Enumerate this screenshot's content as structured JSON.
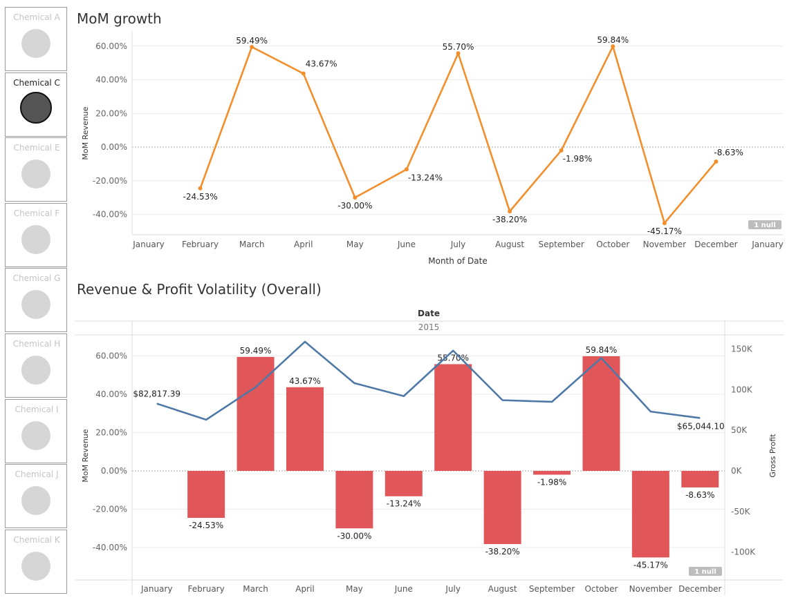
{
  "sidebar": {
    "items": [
      {
        "label": "Chemical A",
        "selected": false
      },
      {
        "label": "Chemical C",
        "selected": true
      },
      {
        "label": "Chemical E",
        "selected": false
      },
      {
        "label": "Chemical F",
        "selected": false
      },
      {
        "label": "Chemical G",
        "selected": false
      },
      {
        "label": "Chemical H",
        "selected": false
      },
      {
        "label": "Chemical I",
        "selected": false
      },
      {
        "label": "Chemical J",
        "selected": false
      },
      {
        "label": "Chemical K",
        "selected": false
      }
    ]
  },
  "chart_data": [
    {
      "type": "line",
      "title": "MoM growth",
      "xlabel": "Month of Date",
      "ylabel": "MoM Revenue",
      "x_ticks": [
        "January",
        "February",
        "March",
        "April",
        "May",
        "June",
        "July",
        "August",
        "September",
        "October",
        "November",
        "December",
        "January"
      ],
      "y_ticks": [
        "60.00%",
        "40.00%",
        "20.00%",
        "0.00%",
        "-20.00%",
        "-40.00%"
      ],
      "ylim": [
        -50,
        65
      ],
      "color": "#f28e2b",
      "null_badge": "1 null",
      "series": [
        {
          "values": [
            null,
            -24.53,
            59.49,
            43.67,
            -30.0,
            -13.24,
            55.7,
            -38.2,
            -1.98,
            59.84,
            -45.17,
            -8.63
          ]
        }
      ],
      "labels": [
        "",
        "-24.53%",
        "59.49%",
        "43.67%",
        "-30.00%",
        "-13.24%",
        "55.70%",
        "-38.20%",
        "-1.98%",
        "59.84%",
        "-45.17%",
        "-8.63%"
      ]
    },
    {
      "type": "bar",
      "title": "Revenue & Profit Volatility (Overall)",
      "header_label": "Date",
      "header_sub": "2015",
      "categories": [
        "January",
        "February",
        "March",
        "April",
        "May",
        "June",
        "July",
        "August",
        "September",
        "October",
        "November",
        "December"
      ],
      "ylabel": "MoM Revenue",
      "ylabel_right": "Gross Profit",
      "y_ticks_left": [
        "60.00%",
        "40.00%",
        "20.00%",
        "0.00%",
        "-20.00%",
        "-40.00%"
      ],
      "y_ticks_right": [
        "150K",
        "100K",
        "50K",
        "0K",
        "-50K",
        "-100K"
      ],
      "ylim_left": [
        -55,
        65
      ],
      "ylim_right": [
        -122000,
        152000
      ],
      "bar_color": "#e15759",
      "line_color": "#4e79a7",
      "null_badge": "1 null",
      "bars": [
        null,
        -24.53,
        59.49,
        43.67,
        -30.0,
        -13.24,
        55.7,
        -38.2,
        -1.98,
        59.84,
        -45.17,
        -8.63
      ],
      "bar_labels": [
        "",
        "-24.53%",
        "59.49%",
        "43.67%",
        "-30.00%",
        "-13.24%",
        "55.70%",
        "-38.20%",
        "-1.98%",
        "59.84%",
        "-45.17%",
        "-8.63%"
      ],
      "profit": [
        82817.39,
        63000,
        103000,
        159000,
        108000,
        92000,
        148000,
        87000,
        85000,
        139000,
        73000,
        65044.1
      ],
      "profit_labels": {
        "first": "$82,817.39",
        "last": "$65,044.10"
      }
    }
  ]
}
